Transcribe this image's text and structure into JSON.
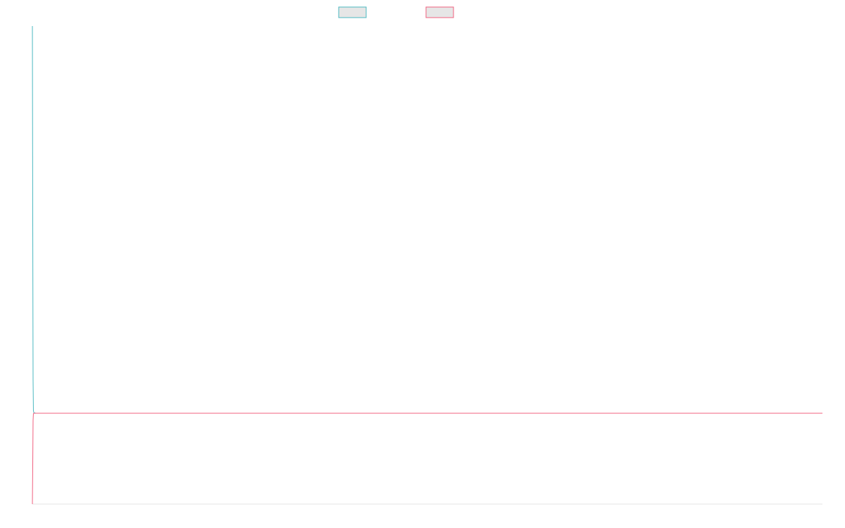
{
  "chart_data": {
    "type": "line",
    "title": "",
    "xlabel": "",
    "ylabel": "",
    "grid": false,
    "legend_position": "top-center",
    "x": [
      0,
      1,
      2,
      3,
      4,
      5,
      10,
      20,
      40,
      60,
      80,
      100,
      150,
      200,
      250,
      300,
      350,
      400,
      450,
      500,
      550,
      600,
      650,
      700,
      750,
      800,
      850,
      900,
      950,
      1000,
      1050,
      1100,
      1150,
      1200,
      1250,
      1300,
      1350,
      1400,
      1450,
      1500,
      1550,
      1600,
      1650,
      1700,
      1750,
      1800,
      1850,
      1900,
      1950,
      2000,
      2050,
      2100,
      2150,
      2200,
      2250,
      2300
    ],
    "xlim": [
      0,
      2300
    ],
    "ylim": [
      0,
      100
    ],
    "series": [
      {
        "name": "",
        "color": "#4bb8c0",
        "values": [
          100,
          60,
          26,
          19.5,
          19.2,
          19.1,
          19.0,
          19.0,
          19.0,
          19.0,
          19.0,
          19.0,
          19.0,
          19.0,
          19.0,
          19.0,
          19.0,
          19.0,
          19.0,
          19.0,
          19.0,
          19.0,
          19.0,
          19.0,
          19.0,
          19.0,
          19.0,
          19.0,
          19.0,
          19.0,
          19.0,
          19.0,
          19.0,
          19.0,
          19.0,
          19.0,
          19.0,
          19.0,
          19.0,
          19.0,
          19.0,
          19.0,
          19.0,
          19.0,
          19.0,
          19.0,
          19.0,
          19.0,
          19.0,
          19.0,
          19.0,
          19.0,
          19.0,
          19.0,
          19.0,
          19.0
        ]
      },
      {
        "name": "",
        "color": "#f0607f",
        "values": [
          0,
          8,
          17.5,
          18.9,
          19.0,
          19.0,
          19.0,
          19.0,
          19.0,
          19.0,
          19.0,
          19.0,
          19.0,
          19.0,
          19.0,
          19.0,
          19.0,
          19.0,
          19.0,
          19.0,
          19.0,
          19.0,
          19.0,
          19.0,
          19.0,
          19.0,
          19.0,
          19.0,
          19.0,
          19.0,
          19.0,
          19.0,
          19.0,
          19.0,
          19.0,
          19.0,
          19.0,
          19.0,
          19.0,
          19.0,
          19.0,
          19.0,
          19.0,
          19.0,
          19.0,
          19.0,
          19.0,
          19.0,
          19.0,
          19.0,
          19.0,
          19.0,
          19.0,
          19.0,
          19.0,
          19.0
        ]
      }
    ]
  }
}
